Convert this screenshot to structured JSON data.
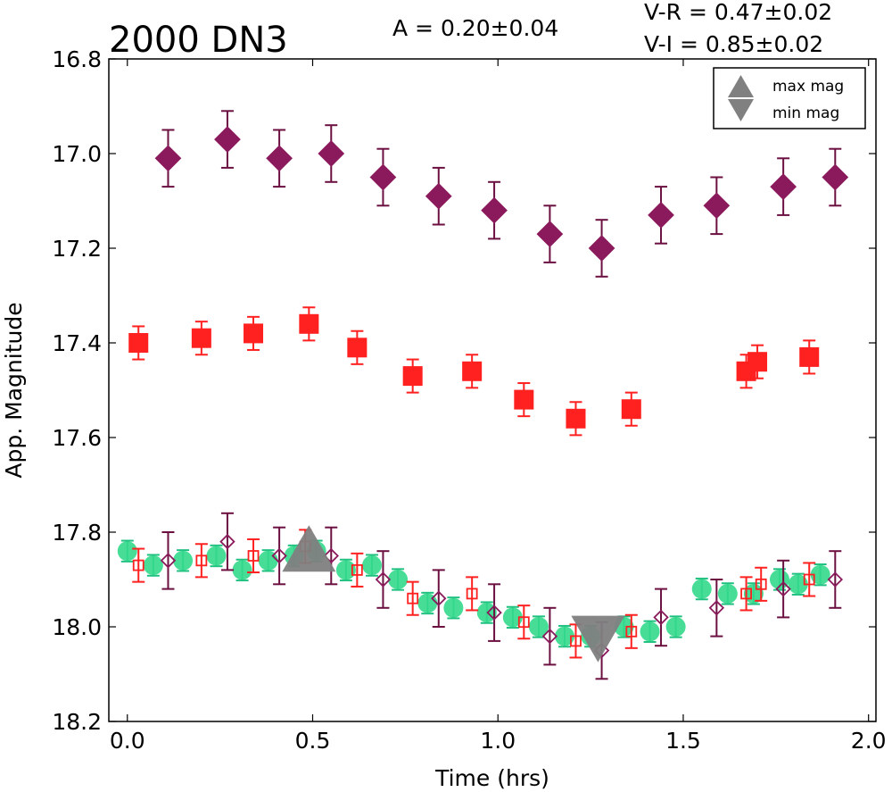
{
  "chart_data": {
    "type": "scatter",
    "title": "2000 DN3",
    "annotations": {
      "amplitude": "A  = 0.20±0.04",
      "v_r": "V-R = 0.47±0.02",
      "v_i": "V-I  = 0.85±0.02"
    },
    "xlabel": "Time (hrs)",
    "ylabel": "App. Magnitude",
    "xlim": [
      -0.05,
      2.02
    ],
    "ylim": [
      18.2,
      16.8
    ],
    "y_inverted": true,
    "xticks": [
      "0.0",
      "0.5",
      "1.0",
      "1.5",
      "2.0"
    ],
    "yticks": [
      "16.8",
      "17.0",
      "17.2",
      "17.4",
      "17.6",
      "17.8",
      "18.0",
      "18.2"
    ],
    "xtick_values": [
      0.0,
      0.5,
      1.0,
      1.5,
      2.0
    ],
    "ytick_values": [
      16.8,
      17.0,
      17.2,
      17.4,
      17.6,
      17.8,
      18.0,
      18.2
    ],
    "grid": false,
    "legend": {
      "position": "top-right",
      "entries": [
        {
          "label": "max mag",
          "marker": "triangle-up",
          "color": "#808080"
        },
        {
          "label": "min mag",
          "marker": "triangle-down",
          "color": "#808080"
        }
      ]
    },
    "series": [
      {
        "marker": "diamond",
        "filled": true,
        "color": "#8b1a5c",
        "errcolor": "#6b1040",
        "x": [
          0.11,
          0.27,
          0.41,
          0.55,
          0.69,
          0.84,
          0.99,
          1.14,
          1.28,
          1.44,
          1.59,
          1.77,
          1.91
        ],
        "y": [
          17.01,
          16.97,
          17.01,
          17.0,
          17.05,
          17.09,
          17.12,
          17.17,
          17.2,
          17.13,
          17.11,
          17.07,
          17.05
        ],
        "err": [
          0.06,
          0.06,
          0.06,
          0.06,
          0.06,
          0.06,
          0.06,
          0.06,
          0.06,
          0.06,
          0.06,
          0.06,
          0.06
        ]
      },
      {
        "marker": "square",
        "filled": true,
        "color": "#ff2020",
        "errcolor": "#ff2020",
        "x": [
          0.03,
          0.2,
          0.34,
          0.49,
          0.62,
          0.77,
          0.93,
          1.07,
          1.21,
          1.36,
          1.67,
          1.7,
          1.84
        ],
        "y": [
          17.4,
          17.39,
          17.38,
          17.36,
          17.41,
          17.47,
          17.46,
          17.52,
          17.56,
          17.54,
          17.46,
          17.44,
          17.43
        ],
        "err": [
          0.035,
          0.035,
          0.035,
          0.035,
          0.035,
          0.035,
          0.035,
          0.035,
          0.035,
          0.035,
          0.035,
          0.035,
          0.035
        ]
      },
      {
        "marker": "circle",
        "filled": true,
        "color": "#33d98c",
        "errcolor": "#20c080",
        "x": [
          0.0,
          0.07,
          0.15,
          0.24,
          0.31,
          0.38,
          0.45,
          0.51,
          0.59,
          0.66,
          0.73,
          0.81,
          0.88,
          0.97,
          1.04,
          1.11,
          1.18,
          1.25,
          1.34,
          1.41,
          1.48,
          1.55,
          1.62,
          1.69,
          1.76,
          1.81,
          1.87
        ],
        "y": [
          17.84,
          17.87,
          17.86,
          17.85,
          17.88,
          17.86,
          17.85,
          17.84,
          17.88,
          17.87,
          17.9,
          17.95,
          17.96,
          17.97,
          17.98,
          18.0,
          18.02,
          18.02,
          18.0,
          18.01,
          18.0,
          17.92,
          17.93,
          17.93,
          17.9,
          17.91,
          17.89
        ],
        "err": [
          0.022,
          0.022,
          0.022,
          0.022,
          0.022,
          0.022,
          0.022,
          0.022,
          0.022,
          0.022,
          0.022,
          0.022,
          0.022,
          0.022,
          0.022,
          0.022,
          0.022,
          0.022,
          0.022,
          0.022,
          0.022,
          0.022,
          0.022,
          0.022,
          0.022,
          0.022,
          0.022
        ]
      },
      {
        "marker": "square",
        "filled": false,
        "color": "#ff2020",
        "errcolor": "#ff2020",
        "x": [
          0.03,
          0.2,
          0.34,
          0.48,
          0.62,
          0.77,
          0.93,
          1.07,
          1.21,
          1.36,
          1.67,
          1.71,
          1.84
        ],
        "y": [
          17.87,
          17.86,
          17.85,
          17.83,
          17.88,
          17.94,
          17.93,
          17.99,
          18.03,
          18.01,
          17.93,
          17.91,
          17.9
        ],
        "err": [
          0.035,
          0.035,
          0.035,
          0.035,
          0.035,
          0.035,
          0.035,
          0.035,
          0.035,
          0.035,
          0.035,
          0.035,
          0.035
        ]
      },
      {
        "marker": "diamond",
        "filled": false,
        "color": "#8b1a5c",
        "errcolor": "#6b1040",
        "x": [
          0.11,
          0.27,
          0.41,
          0.55,
          0.69,
          0.84,
          0.99,
          1.14,
          1.28,
          1.44,
          1.59,
          1.77,
          1.91
        ],
        "y": [
          17.86,
          17.82,
          17.85,
          17.85,
          17.9,
          17.94,
          17.97,
          18.02,
          18.05,
          17.98,
          17.96,
          17.92,
          17.9
        ],
        "err": [
          0.06,
          0.06,
          0.06,
          0.06,
          0.06,
          0.06,
          0.06,
          0.06,
          0.06,
          0.06,
          0.06,
          0.06,
          0.06
        ]
      }
    ],
    "extrema_markers": [
      {
        "label": "max mag",
        "marker": "triangle-up",
        "x": 0.49,
        "y": 17.84,
        "color": "#808080"
      },
      {
        "label": "min mag",
        "marker": "triangle-down",
        "x": 1.27,
        "y": 18.02,
        "color": "#808080"
      }
    ]
  }
}
